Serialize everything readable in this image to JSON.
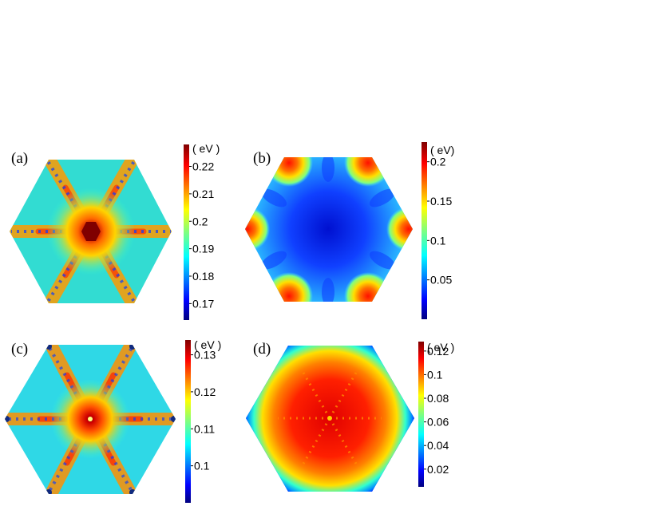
{
  "chart_data": [
    {
      "type": "heatmap",
      "panel_label": "(a)",
      "shape": "hexagon",
      "pattern": "six radial high-value arms with strong center maximum, dark-blue spots along arms",
      "edge_value": 0.193,
      "colorbar": {
        "unit": "( eV )",
        "ticks": [
          "0.17",
          "0.18",
          "0.19",
          "0.2",
          "0.21",
          "0.22"
        ],
        "tick_values": [
          0.17,
          0.18,
          0.19,
          0.2,
          0.21,
          0.22
        ],
        "range": [
          0.164,
          0.228
        ]
      }
    },
    {
      "type": "heatmap",
      "panel_label": "(b)",
      "shape": "hexagon",
      "pattern": "low-value blue center with high-value red/orange lobes at the six corners",
      "edge_value": 0.09,
      "colorbar": {
        "unit": "( eV)",
        "ticks": [
          "0.05",
          "0.1",
          "0.15",
          "0.2"
        ],
        "tick_values": [
          0.05,
          0.1,
          0.15,
          0.2
        ],
        "range": [
          0.0,
          0.225
        ]
      }
    },
    {
      "type": "heatmap",
      "panel_label": "(c)",
      "shape": "hexagon",
      "pattern": "six radial high-value arms with strong center maximum, dark-blue dots at vertices",
      "edge_value": 0.106,
      "colorbar": {
        "unit": "( eV )",
        "ticks": [
          "0.1",
          "0.11",
          "0.12",
          "0.13"
        ],
        "tick_values": [
          0.1,
          0.11,
          0.12,
          0.13
        ],
        "range": [
          0.09,
          0.134
        ]
      }
    },
    {
      "type": "heatmap",
      "panel_label": "(d)",
      "shape": "hexagon",
      "pattern": "broad high-value red flower in center, fading to blue at the hexagon boundary",
      "edge_value": 0.01,
      "colorbar": {
        "unit": "( eV )",
        "ticks": [
          "0.02",
          "0.04",
          "0.06",
          "0.08",
          "0.1",
          "0.12"
        ],
        "tick_values": [
          0.02,
          0.04,
          0.06,
          0.08,
          0.1,
          0.12
        ],
        "range": [
          0.005,
          0.128
        ]
      }
    }
  ],
  "colors": {
    "jet": [
      "#00007f",
      "#0000ff",
      "#007fff",
      "#00ffff",
      "#7fff7f",
      "#ffff00",
      "#ff7f00",
      "#ff0000",
      "#7f0000"
    ]
  }
}
